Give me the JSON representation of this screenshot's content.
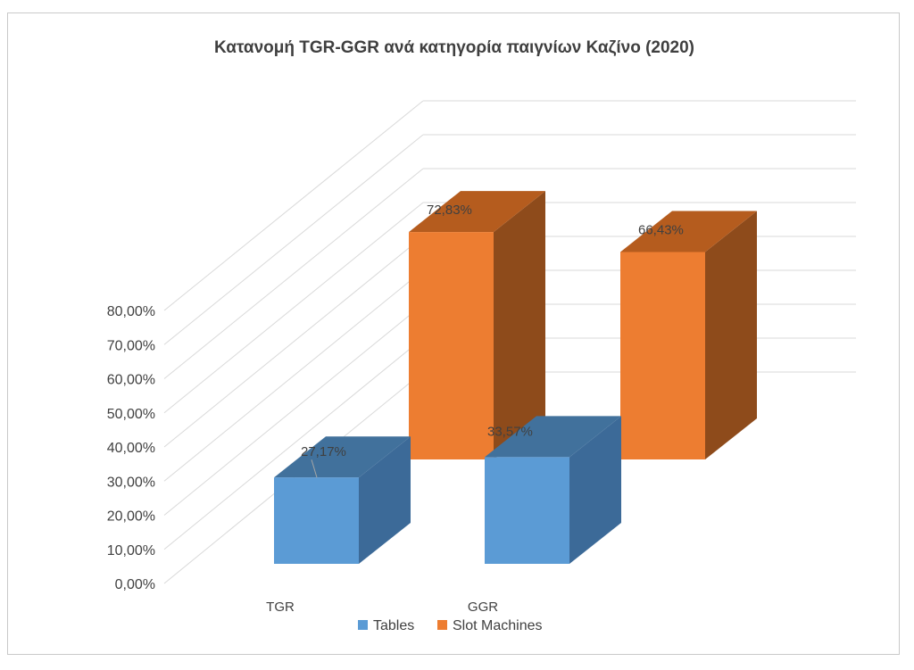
{
  "chart_data": {
    "type": "bar",
    "title": "Κατανομή TGR-GGR ανά κατηγορία παιγνίων Καζίνο (2020)",
    "categories": [
      "TGR",
      "GGR"
    ],
    "series": [
      {
        "name": "Tables",
        "values": [
          27.17,
          33.57
        ],
        "labels": [
          "27,17%",
          "33,57%"
        ],
        "color": "#5b9bd5",
        "side_color": "#3c6a98",
        "top_color": "#41719c"
      },
      {
        "name": "Slot Machines",
        "values": [
          72.83,
          66.43
        ],
        "labels": [
          "72,83%",
          "66,43%"
        ],
        "color": "#ed7d31",
        "side_color": "#8e4b1b",
        "top_color": "#b55c1e"
      }
    ],
    "y_ticks": [
      "0,00%",
      "10,00%",
      "20,00%",
      "30,00%",
      "40,00%",
      "50,00%",
      "60,00%",
      "70,00%",
      "80,00%"
    ],
    "ylim": [
      0,
      80
    ],
    "grid": true,
    "legend_position": "bottom",
    "style": "3d-column"
  }
}
